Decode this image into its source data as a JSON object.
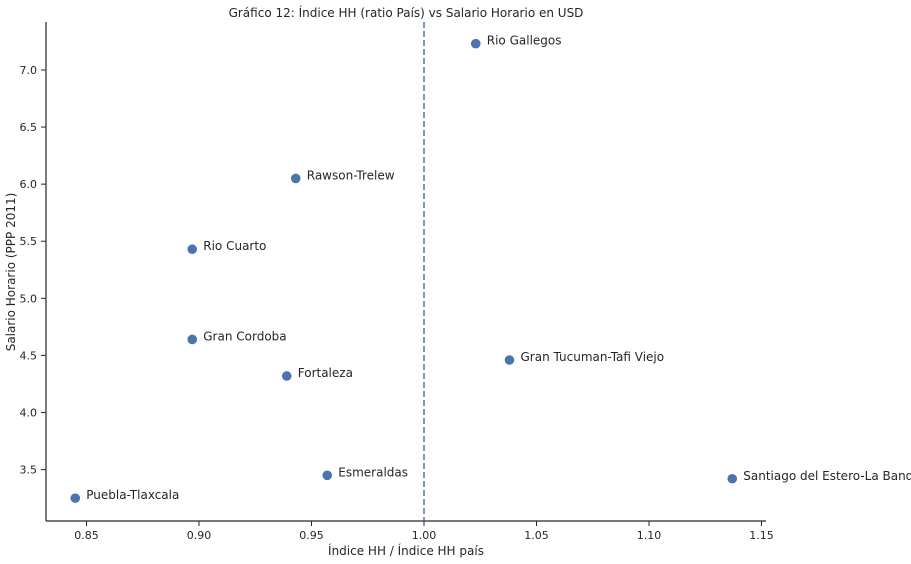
{
  "chart_data": {
    "type": "scatter",
    "title": "Gráfico 12: Índice HH (ratio País) vs Salario Horario en USD",
    "xlabel": "Índice HH / Índice HH país",
    "ylabel": "Salario Horario (PPP 2011)",
    "xlim": [
      0.832,
      1.152
    ],
    "ylim": [
      3.05,
      7.42
    ],
    "xticks": [
      0.85,
      0.9,
      0.95,
      1.0,
      1.05,
      1.1,
      1.15
    ],
    "xtick_labels": [
      "0.85",
      "0.90",
      "0.95",
      "1.00",
      "1.05",
      "1.10",
      "1.15"
    ],
    "yticks": [
      3.5,
      4.0,
      4.5,
      5.0,
      5.5,
      6.0,
      6.5,
      7.0
    ],
    "ytick_labels": [
      "3.5",
      "4.0",
      "4.5",
      "5.0",
      "5.5",
      "6.0",
      "6.5",
      "7.0"
    ],
    "vline_x": 1.0,
    "grid": false,
    "marker_color": "#4c72b0",
    "points": [
      {
        "label": "Rio Gallegos",
        "x": 1.023,
        "y": 7.23
      },
      {
        "label": "Rawson-Trelew",
        "x": 0.943,
        "y": 6.05
      },
      {
        "label": "Rio Cuarto",
        "x": 0.897,
        "y": 5.43
      },
      {
        "label": "Gran Cordoba",
        "x": 0.897,
        "y": 4.64
      },
      {
        "label": "Fortaleza",
        "x": 0.939,
        "y": 4.32
      },
      {
        "label": "Gran Tucuman-Tafi Viejo",
        "x": 1.038,
        "y": 4.46
      },
      {
        "label": "Esmeraldas",
        "x": 0.957,
        "y": 3.45
      },
      {
        "label": "Santiago del Estero-La Banda",
        "x": 1.137,
        "y": 3.42
      },
      {
        "label": "Puebla-Tlaxcala",
        "x": 0.845,
        "y": 3.25
      }
    ]
  }
}
